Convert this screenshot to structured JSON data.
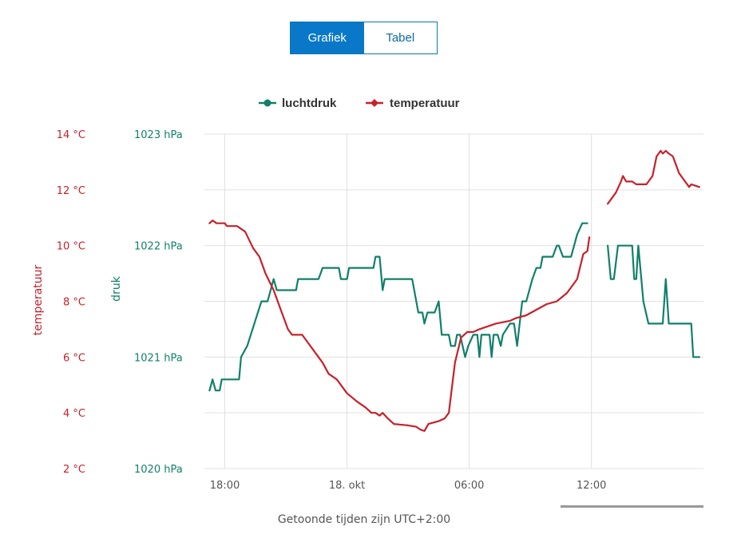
{
  "toggle": {
    "chart_label": "Grafiek",
    "table_label": "Tabel",
    "active": "chart"
  },
  "caption": "Getoonde tijden zijn UTC+2:00",
  "colors": {
    "pressure": "#11806a",
    "temperature": "#c8202a",
    "grid": "#e0e0e0",
    "toggle_active": "#0a78c8"
  },
  "chart_data": {
    "type": "line",
    "legend_position": "top-center",
    "grid": true,
    "x_axis": {
      "ticks": [
        "18:00",
        "18. okt",
        "06:00",
        "12:00"
      ],
      "tick_hours": [
        0,
        6,
        12,
        18
      ],
      "range_hours": [
        -1,
        23.5
      ]
    },
    "y_axes": [
      {
        "id": "temp",
        "title": "temperatuur",
        "unit": "°C",
        "ticks": [
          "2 °C",
          "4 °C",
          "6 °C",
          "8 °C",
          "10 °C",
          "12 °C",
          "14 °C"
        ],
        "range": [
          2,
          14
        ]
      },
      {
        "id": "pressure",
        "title": "druk",
        "unit": "hPa",
        "ticks": [
          "1020 hPa",
          "1021 hPa",
          "1022 hPa",
          "1023 hPa"
        ],
        "range": [
          1020,
          1023
        ]
      }
    ],
    "series": [
      {
        "name": "luchtdruk",
        "axis": "pressure",
        "marker": "circle",
        "segments": [
          [
            [
              -0.75,
              1020.7
            ],
            [
              -0.6,
              1020.8
            ],
            [
              -0.45,
              1020.7
            ],
            [
              -0.25,
              1020.7
            ],
            [
              -0.15,
              1020.8
            ],
            [
              0.7,
              1020.8
            ],
            [
              0.8,
              1021.0
            ],
            [
              1.1,
              1021.1
            ],
            [
              1.8,
              1021.5
            ],
            [
              2.1,
              1021.5
            ],
            [
              2.4,
              1021.7
            ],
            [
              2.55,
              1021.6
            ],
            [
              3.5,
              1021.6
            ],
            [
              3.6,
              1021.7
            ],
            [
              4.6,
              1021.7
            ],
            [
              4.8,
              1021.8
            ],
            [
              5.6,
              1021.8
            ],
            [
              5.7,
              1021.7
            ],
            [
              6.0,
              1021.7
            ],
            [
              6.1,
              1021.8
            ],
            [
              7.3,
              1021.8
            ],
            [
              7.4,
              1021.9
            ],
            [
              7.6,
              1021.9
            ],
            [
              7.75,
              1021.6
            ],
            [
              7.85,
              1021.7
            ],
            [
              9.2,
              1021.7
            ],
            [
              9.5,
              1021.4
            ],
            [
              9.7,
              1021.4
            ],
            [
              9.8,
              1021.3
            ],
            [
              9.95,
              1021.4
            ],
            [
              10.3,
              1021.4
            ],
            [
              10.5,
              1021.5
            ],
            [
              10.65,
              1021.2
            ],
            [
              11.0,
              1021.2
            ],
            [
              11.1,
              1021.1
            ],
            [
              11.3,
              1021.1
            ],
            [
              11.4,
              1021.2
            ],
            [
              11.55,
              1021.2
            ],
            [
              11.8,
              1021.0
            ],
            [
              11.95,
              1021.1
            ],
            [
              12.2,
              1021.2
            ],
            [
              12.4,
              1021.2
            ],
            [
              12.5,
              1021.0
            ],
            [
              12.6,
              1021.2
            ],
            [
              13.0,
              1021.2
            ],
            [
              13.1,
              1021.0
            ],
            [
              13.2,
              1021.2
            ],
            [
              13.4,
              1021.2
            ],
            [
              13.55,
              1021.1
            ],
            [
              13.65,
              1021.2
            ],
            [
              14.0,
              1021.3
            ],
            [
              14.2,
              1021.3
            ],
            [
              14.35,
              1021.1
            ],
            [
              14.6,
              1021.5
            ],
            [
              14.8,
              1021.5
            ],
            [
              15.1,
              1021.7
            ],
            [
              15.3,
              1021.8
            ],
            [
              15.5,
              1021.8
            ],
            [
              15.6,
              1021.9
            ],
            [
              16.1,
              1021.9
            ],
            [
              16.3,
              1022.0
            ],
            [
              16.4,
              1022.0
            ],
            [
              16.6,
              1021.9
            ],
            [
              17.0,
              1021.9
            ],
            [
              17.3,
              1022.1
            ],
            [
              17.55,
              1022.2
            ],
            [
              17.8,
              1022.2
            ]
          ],
          [
            [
              18.8,
              1022.0
            ],
            [
              18.95,
              1021.7
            ],
            [
              19.1,
              1021.7
            ],
            [
              19.3,
              1022.0
            ],
            [
              20.0,
              1022.0
            ],
            [
              20.1,
              1021.7
            ],
            [
              20.2,
              1021.7
            ],
            [
              20.3,
              1022.0
            ],
            [
              20.45,
              1021.7
            ],
            [
              20.55,
              1021.5
            ],
            [
              20.8,
              1021.3
            ],
            [
              21.5,
              1021.3
            ],
            [
              21.65,
              1021.7
            ],
            [
              21.8,
              1021.3
            ],
            [
              22.9,
              1021.3
            ],
            [
              23.0,
              1021.0
            ],
            [
              23.3,
              1021.0
            ]
          ]
        ]
      },
      {
        "name": "temperatuur",
        "axis": "temp",
        "marker": "diamond",
        "segments": [
          [
            [
              -0.75,
              10.8
            ],
            [
              -0.6,
              10.9
            ],
            [
              -0.4,
              10.8
            ],
            [
              0.0,
              10.8
            ],
            [
              0.1,
              10.7
            ],
            [
              0.6,
              10.7
            ],
            [
              0.8,
              10.6
            ],
            [
              1.0,
              10.5
            ],
            [
              1.2,
              10.2
            ],
            [
              1.4,
              9.9
            ],
            [
              1.7,
              9.6
            ],
            [
              2.0,
              9.0
            ],
            [
              2.4,
              8.4
            ],
            [
              2.8,
              7.6
            ],
            [
              3.1,
              7.0
            ],
            [
              3.3,
              6.8
            ],
            [
              3.8,
              6.8
            ],
            [
              4.1,
              6.5
            ],
            [
              4.5,
              6.1
            ],
            [
              4.8,
              5.8
            ],
            [
              5.1,
              5.4
            ],
            [
              5.5,
              5.2
            ],
            [
              6.0,
              4.7
            ],
            [
              6.5,
              4.4
            ],
            [
              6.9,
              4.2
            ],
            [
              7.2,
              4.0
            ],
            [
              7.4,
              4.0
            ],
            [
              7.6,
              3.9
            ],
            [
              7.75,
              4.0
            ],
            [
              8.0,
              3.8
            ],
            [
              8.3,
              3.6
            ],
            [
              9.0,
              3.55
            ],
            [
              9.4,
              3.5
            ],
            [
              9.6,
              3.4
            ],
            [
              9.8,
              3.35
            ],
            [
              10.0,
              3.6
            ],
            [
              10.5,
              3.7
            ],
            [
              10.8,
              3.8
            ],
            [
              11.0,
              4.0
            ],
            [
              11.3,
              5.8
            ],
            [
              11.6,
              6.7
            ],
            [
              11.9,
              6.9
            ],
            [
              12.2,
              6.9
            ],
            [
              12.5,
              7.0
            ],
            [
              12.9,
              7.1
            ],
            [
              13.3,
              7.2
            ],
            [
              14.0,
              7.3
            ],
            [
              14.3,
              7.4
            ],
            [
              14.8,
              7.5
            ],
            [
              15.3,
              7.7
            ],
            [
              15.8,
              7.9
            ],
            [
              16.3,
              8.0
            ],
            [
              16.8,
              8.3
            ],
            [
              17.3,
              8.8
            ],
            [
              17.6,
              9.7
            ],
            [
              17.8,
              9.8
            ],
            [
              17.9,
              10.3
            ]
          ],
          [
            [
              18.8,
              11.5
            ],
            [
              19.0,
              11.7
            ],
            [
              19.2,
              11.9
            ],
            [
              19.45,
              12.3
            ],
            [
              19.55,
              12.5
            ],
            [
              19.7,
              12.3
            ],
            [
              20.0,
              12.3
            ],
            [
              20.2,
              12.2
            ],
            [
              20.7,
              12.2
            ],
            [
              21.0,
              12.5
            ],
            [
              21.2,
              13.2
            ],
            [
              21.4,
              13.4
            ],
            [
              21.5,
              13.3
            ],
            [
              21.65,
              13.4
            ],
            [
              21.8,
              13.3
            ],
            [
              22.0,
              13.2
            ],
            [
              22.3,
              12.6
            ],
            [
              22.6,
              12.3
            ],
            [
              22.8,
              12.1
            ],
            [
              22.9,
              12.2
            ],
            [
              23.3,
              12.1
            ]
          ]
        ]
      }
    ]
  }
}
